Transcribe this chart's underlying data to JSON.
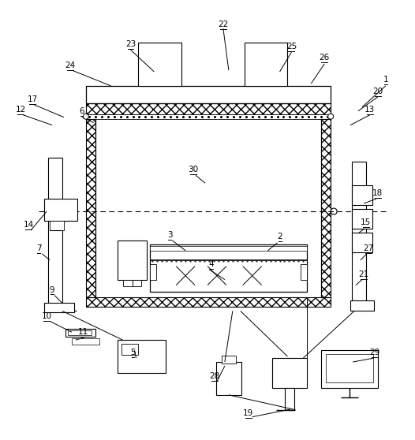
{
  "bg_color": "#ffffff",
  "figsize": [
    5.26,
    5.58
  ],
  "dpi": 100,
  "chamL": 108,
  "chamR": 420,
  "chamT": 130,
  "chamB": 390,
  "wallT": 12,
  "laserY": 268
}
